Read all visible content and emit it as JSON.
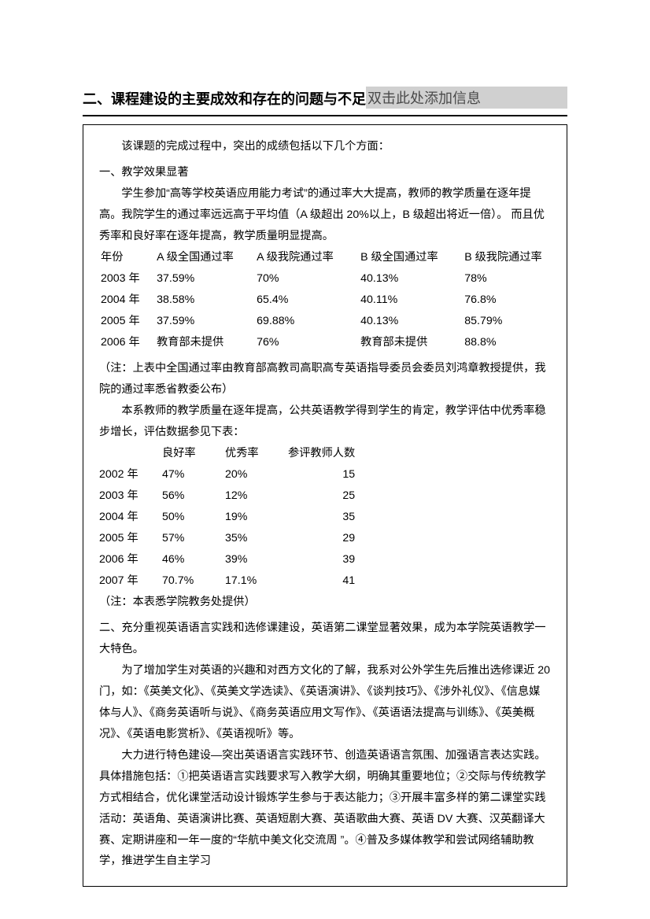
{
  "heading": {
    "title": "二、课程建设的主要成效和存在的问题与不足",
    "placeholder": "双击此处添加信息"
  },
  "box": {
    "intro_line": "该课题的完成过程中，突出的成绩包括以下几个方面：",
    "s1": {
      "title": "一、教学效果显著",
      "p1": "学生参加“高等学校英语应用能力考试”的通过率大大提高，教师的教学质量在逐年提高。我院学生的通过率远远高于平均值（A 级超出 20%以上，B 级超出将近一倍）。 而且优秀率和良好率在逐年提高，教学质量明显提高。"
    },
    "table1": {
      "headers": [
        "年份",
        "A 级全国通过率",
        "A 级我院通过率",
        "B 级全国通过率",
        "B 级我院通过率"
      ],
      "rows": [
        [
          "2003 年",
          "37.59%",
          "70%",
          "40.13%",
          "78%"
        ],
        [
          "2004 年",
          "38.58%",
          "65.4%",
          "40.11%",
          "76.8%"
        ],
        [
          "2005 年",
          "37.59%",
          "69.88%",
          "40.13%",
          "85.79%"
        ],
        [
          "2006 年",
          "教育部未提供",
          "76%",
          "教育部未提供",
          "88.8%"
        ]
      ]
    },
    "note1": "（注：上表中全国通过率由教育部高教司高职高专英语指导委员会委员刘鸿章教授提供，我院的通过率悉省教委公布）",
    "p_after_note1": "本系教师的教学质量在逐年提高，公共英语教学得到学生的肯定，教学评估中优秀率稳步增长，评估数据参见下表：",
    "table2": {
      "headers": [
        "",
        "良好率",
        "优秀率",
        "参评教师人数"
      ],
      "rows": [
        [
          "2002 年",
          "47%",
          "20%",
          "15"
        ],
        [
          "2003 年",
          "56%",
          "12%",
          "25"
        ],
        [
          "2004 年",
          "50%",
          "19%",
          "35"
        ],
        [
          "2005 年",
          "57%",
          "35%",
          "29"
        ],
        [
          "2006 年",
          "46%",
          "39%",
          "39"
        ],
        [
          "2007 年",
          "70.7%",
          "17.1%",
          "41"
        ]
      ]
    },
    "note2": "（注：本表悉学院教务处提供）",
    "s2": {
      "title": "二、充分重视英语语言实践和选修课建设，英语第二课堂显著效果，成为本学院英语教学一大特色。",
      "p1": "为了增加学生对英语的兴趣和对西方文化的了解，我系对公外学生先后推出选修课近 20 门，如：《英美文化》、《英美文学选读》、《英语演讲》、《谈判技巧》、《涉外礼仪》、《信息媒体与人》、《商务英语听与说》、《商务英语应用文写作》、《英语语法提高与训练》、《英美概况》、《英语电影赏析》、《英语视听》等。",
      "p2": "大力进行特色建设—突出英语语言实践环节、创造英语语言氛围、加强语言表达实践。具体措施包括：①把英语语言实践要求写入教学大纲，明确其重要地位；②交际与传统教学方式相结合，优化课堂活动设计锻炼学生参与于表达能力；③开展丰富多样的第二课堂实践活动：英语角、英语演讲比赛、英语短剧大赛、英语歌曲大赛、英语 DV 大赛、汉英翻译大赛、定期讲座和一年一度的“华航中美文化交流周 ”。④普及多媒体教学和尝试网络辅助教学，推进学生自主学习"
    }
  }
}
